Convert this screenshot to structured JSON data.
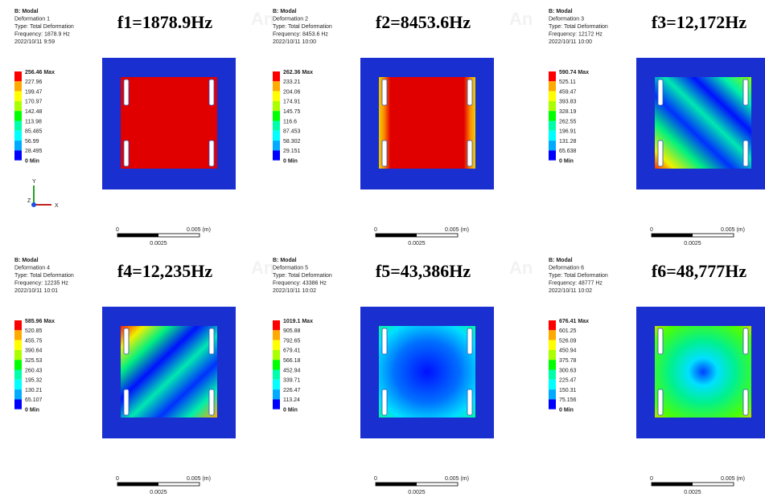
{
  "watermark": "An",
  "triad": [
    "Y",
    "Z",
    "X"
  ],
  "panels": [
    {
      "header": [
        "B: Modal",
        "Deformation 1",
        "Type: Total Deformation",
        "Frequency: 1878.9 Hz",
        "2022/10/11 9:59"
      ],
      "frequency_label": "f1=1878.9Hz",
      "legend": [
        "256.46 Max",
        "227.96",
        "199.47",
        "170.97",
        "142.48",
        "113.98",
        "85.485",
        "56.99",
        "28.495",
        "0 Min"
      ],
      "scale": [
        "0",
        "0.005 (m)",
        "0.0025"
      ]
    },
    {
      "header": [
        "B: Modal",
        "Deformation 2",
        "Type: Total Deformation",
        "Frequency: 8453.6 Hz",
        "2022/10/11 10:00"
      ],
      "frequency_label": "f2=8453.6Hz",
      "legend": [
        "262.36 Max",
        "233.21",
        "204.06",
        "174.91",
        "145.75",
        "116.6",
        "87.453",
        "58.302",
        "29.151",
        "0 Min"
      ],
      "scale": [
        "0",
        "0.005 (m)",
        "0.0025"
      ]
    },
    {
      "header": [
        "B: Modal",
        "Deformation 3",
        "Type: Total Deformation",
        "Frequency: 12172 Hz",
        "2022/10/11 10:00"
      ],
      "frequency_label": "f3=12,172Hz",
      "legend": [
        "590.74 Max",
        "525.11",
        "459.47",
        "393.83",
        "328.19",
        "262.55",
        "196.91",
        "131.28",
        "65.638",
        "0 Min"
      ],
      "scale": [
        "0",
        "0.005 (m)",
        "0.0025"
      ]
    },
    {
      "header": [
        "B: Modal",
        "Deformation 4",
        "Type: Total Deformation",
        "Frequency: 12235 Hz",
        "2022/10/11 10:01"
      ],
      "frequency_label": "f4=12,235Hz",
      "legend": [
        "585.96 Max",
        "520.85",
        "455.75",
        "390.64",
        "325.53",
        "260.43",
        "195.32",
        "130.21",
        "65.107",
        "0 Min"
      ],
      "scale": [
        "0",
        "0.005 (m)",
        "0.0025"
      ]
    },
    {
      "header": [
        "B: Modal",
        "Deformation 5",
        "Type: Total Deformation",
        "Frequency: 43386 Hz",
        "2022/10/11 10:02"
      ],
      "frequency_label": "f5=43,386Hz",
      "legend": [
        "1019.1 Max",
        "905.88",
        "792.65",
        "679.41",
        "566.18",
        "452.94",
        "339.71",
        "226.47",
        "113.24",
        "0 Min"
      ],
      "scale": [
        "0",
        "0.005 (m)",
        "0.0025"
      ]
    },
    {
      "header": [
        "B: Modal",
        "Deformation 6",
        "Type: Total Deformation",
        "Frequency: 48777 Hz",
        "2022/10/11 10:02"
      ],
      "frequency_label": "f6=48,777Hz",
      "legend": [
        "676.41 Max",
        "601.25",
        "526.09",
        "450.94",
        "375.78",
        "300.63",
        "225.47",
        "150.31",
        "75.156",
        "0 Min"
      ],
      "scale": [
        "0",
        "0.005 (m)",
        "0.0025"
      ]
    }
  ]
}
